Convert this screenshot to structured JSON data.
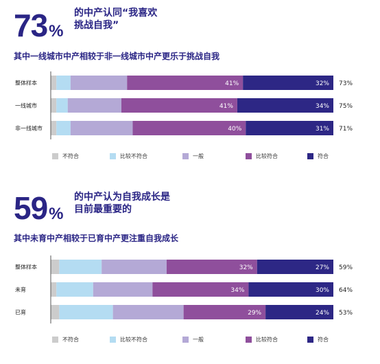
{
  "palette": {
    "不符合": "#cccccc",
    "比较不符合": "#b4dcf2",
    "一般": "#b4a9d6",
    "比较符合": "#8f4f9c",
    "符合": "#2d2785"
  },
  "sections": [
    {
      "headline_number": "73",
      "headline_percent": "%",
      "headline_line1": "的中产认同“我喜欢",
      "headline_line2": "挑战自我”",
      "subtitle": "其中一线城市中产相较于非一线城市中产更乐于挑战自我"
    },
    {
      "headline_number": "59",
      "headline_percent": "%",
      "headline_line1": "的中产认为自我成长是",
      "headline_line2": "目前最重要的",
      "subtitle": "其中未育中产相较于已育中产更注重自我成长"
    }
  ],
  "chart_data": [
    {
      "type": "bar",
      "orientation": "horizontal",
      "stacked": true,
      "normalized": true,
      "xlim": [
        0,
        100
      ],
      "categories": [
        "整体样本",
        "一线城市",
        "非一线城市"
      ],
      "series": [
        {
          "name": "不符合",
          "values": [
            2,
            2,
            2
          ]
        },
        {
          "name": "比较不符合",
          "values": [
            5,
            4,
            5
          ]
        },
        {
          "name": "一般",
          "values": [
            20,
            19,
            22
          ]
        },
        {
          "name": "比较符合",
          "values": [
            41,
            41,
            40
          ]
        },
        {
          "name": "符合",
          "values": [
            32,
            34,
            31
          ]
        }
      ],
      "data_labels": {
        "比较符合": [
          "41%",
          "41%",
          "40%"
        ],
        "符合": [
          "32%",
          "34%",
          "31%"
        ]
      },
      "totals": [
        "73%",
        "75%",
        "71%"
      ],
      "legend": [
        "不符合",
        "比较不符合",
        "一般",
        "比较符合",
        "符合"
      ],
      "legend_position": "bottom"
    },
    {
      "type": "bar",
      "orientation": "horizontal",
      "stacked": true,
      "normalized": true,
      "xlim": [
        0,
        100
      ],
      "categories": [
        "整体样本",
        "未育",
        "已育"
      ],
      "series": [
        {
          "name": "不符合",
          "values": [
            3,
            2,
            3
          ]
        },
        {
          "name": "比较不符合",
          "values": [
            15,
            13,
            19
          ]
        },
        {
          "name": "一般",
          "values": [
            23,
            21,
            25
          ]
        },
        {
          "name": "比较符合",
          "values": [
            32,
            34,
            29
          ]
        },
        {
          "name": "符合",
          "values": [
            27,
            30,
            24
          ]
        }
      ],
      "data_labels": {
        "比较符合": [
          "32%",
          "34%",
          "29%"
        ],
        "符合": [
          "27%",
          "30%",
          "24%"
        ]
      },
      "totals": [
        "59%",
        "64%",
        "53%"
      ],
      "legend": [
        "不符合",
        "比较不符合",
        "一般",
        "比较符合",
        "符合"
      ],
      "legend_position": "bottom"
    }
  ]
}
